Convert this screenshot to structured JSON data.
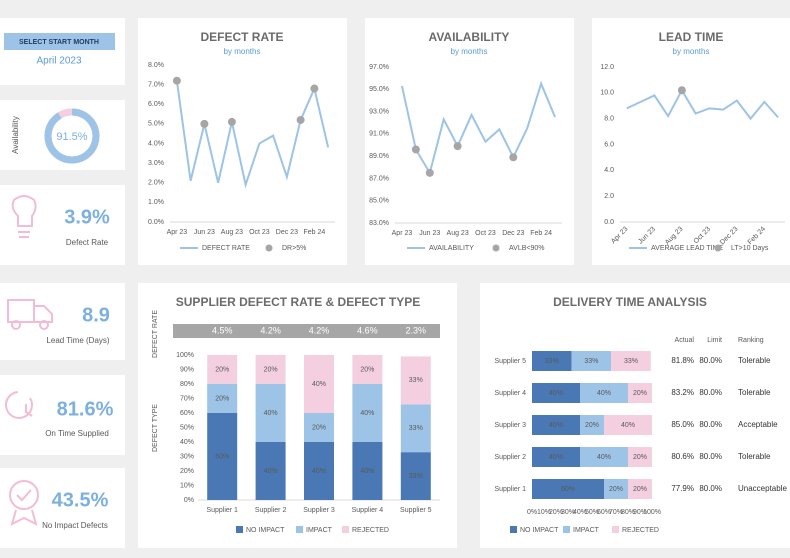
{
  "start_month": {
    "label": "SELECT START MONTH",
    "value": "April 2023"
  },
  "kpis": [
    {
      "label": "Availability",
      "value": 91.5,
      "value_label": "91.5%"
    },
    {
      "label": "Defect Rate",
      "value": "3.9%"
    },
    {
      "label": "Lead Time (Days)",
      "value": "8.9"
    },
    {
      "label": "On Time Supplied",
      "value": "81.6%"
    },
    {
      "label": "No Impact Defects",
      "value": "43.5%"
    }
  ],
  "chart_data": [
    {
      "type": "line",
      "title": "DEFECT RATE",
      "subtitle": "by months",
      "categories": [
        "Apr 23",
        null,
        "Jun 23",
        null,
        "Aug 23",
        null,
        "Oct 23",
        null,
        "Dec 23",
        null,
        "Feb 24",
        null
      ],
      "series": [
        {
          "name": "DEFECT RATE",
          "color": "#9dc3e6",
          "style": "line",
          "values": [
            7.2,
            2.1,
            5.0,
            2.0,
            5.1,
            1.9,
            4.0,
            4.4,
            2.3,
            5.2,
            6.8,
            3.8
          ]
        },
        {
          "name": "DR>5%",
          "color": "#a6a6a6",
          "style": "markers",
          "values": [
            7.2,
            null,
            5.0,
            null,
            5.1,
            null,
            null,
            null,
            null,
            5.2,
            6.8,
            null
          ]
        }
      ],
      "ylim": [
        0,
        8
      ],
      "yticks": [
        {
          "value": 0,
          "label": "0.0%"
        },
        {
          "value": 1,
          "label": "1.0%"
        },
        {
          "value": 2,
          "label": "2.0%"
        },
        {
          "value": 3,
          "label": "3.0%"
        },
        {
          "value": 4,
          "label": "4.0%"
        },
        {
          "value": 5,
          "label": "5.0%"
        },
        {
          "value": 6,
          "label": "6.0%"
        },
        {
          "value": 7,
          "label": "7.0%"
        },
        {
          "value": 8,
          "label": "8.0%"
        }
      ]
    },
    {
      "type": "line",
      "title": "AVAILABILITY",
      "subtitle": "by months",
      "categories": [
        "Apr 23",
        null,
        "Jun 23",
        null,
        "Aug 23",
        null,
        "Oct 23",
        null,
        "Dec 23",
        null,
        "Feb 24",
        null
      ],
      "series": [
        {
          "name": "AVAILABILITY",
          "color": "#9dc3e6",
          "style": "line",
          "values": [
            95.3,
            89.6,
            87.5,
            92.3,
            89.9,
            92.7,
            90.3,
            91.4,
            88.9,
            91.5,
            95.5,
            92.5
          ]
        },
        {
          "name": "AVLB<90%",
          "color": "#a6a6a6",
          "style": "markers",
          "values": [
            null,
            89.6,
            87.5,
            null,
            89.9,
            null,
            null,
            null,
            88.9,
            null,
            null,
            null
          ]
        }
      ],
      "ylim": [
        83,
        97
      ],
      "yticks": [
        {
          "value": 83,
          "label": "83.0%"
        },
        {
          "value": 85,
          "label": "85.0%"
        },
        {
          "value": 87,
          "label": "87.0%"
        },
        {
          "value": 89,
          "label": "89.0%"
        },
        {
          "value": 91,
          "label": "91.0%"
        },
        {
          "value": 93,
          "label": "93.0%"
        },
        {
          "value": 95,
          "label": "95.0%"
        },
        {
          "value": 97,
          "label": "97.0%"
        }
      ]
    },
    {
      "type": "line",
      "title": "LEAD TIME",
      "subtitle": "by months",
      "rotate_x_labels": true,
      "categories": [
        "Apr 23",
        null,
        "Jun 23",
        null,
        "Aug 23",
        null,
        "Oct 23",
        null,
        "Dec 23",
        null,
        "Feb 24",
        null
      ],
      "series": [
        {
          "name": "AVERAGE LEAD TIME",
          "color": "#9dc3e6",
          "style": "line",
          "values": [
            8.8,
            9.3,
            9.8,
            8.2,
            10.2,
            8.4,
            8.8,
            8.7,
            9.4,
            8.0,
            9.3,
            8.1
          ]
        },
        {
          "name": "LT>10 Days",
          "color": "#a6a6a6",
          "style": "markers",
          "values": [
            null,
            null,
            null,
            null,
            10.2,
            null,
            null,
            null,
            null,
            null,
            null,
            null
          ]
        }
      ],
      "ylim": [
        0,
        12
      ],
      "yticks": [
        {
          "value": 0,
          "label": "0.0"
        },
        {
          "value": 2,
          "label": "2.0"
        },
        {
          "value": 4,
          "label": "4.0"
        },
        {
          "value": 6,
          "label": "6.0"
        },
        {
          "value": 8,
          "label": "8.0"
        },
        {
          "value": 10,
          "label": "10.0"
        },
        {
          "value": 12,
          "label": "12.0"
        }
      ]
    },
    {
      "type": "bar",
      "orientation": "vertical",
      "stacked": true,
      "title": "SUPPLIER DEFECT RATE & DEFECT TYPE",
      "ylabel": "DEFECT TYPE",
      "defect_rate_label": "DEFECT RATE",
      "defect_rates": [
        4.5,
        4.2,
        4.2,
        4.6,
        2.3
      ],
      "defect_rate_labels": [
        "4.5%",
        "4.2%",
        "4.2%",
        "4.6%",
        "2.3%"
      ],
      "categories": [
        "Supplier 1",
        "Supplier 2",
        "Supplier 3",
        "Supplier 4",
        "Supplier 5"
      ],
      "series": [
        {
          "name": "NO IMPACT",
          "color": "#4a78b5",
          "values": [
            60,
            40,
            40,
            40,
            33
          ],
          "value_labels": [
            "60%",
            "40%",
            "40%",
            "40%",
            "33%"
          ]
        },
        {
          "name": "IMPACT",
          "color": "#9dc3e6",
          "values": [
            20,
            40,
            20,
            40,
            33
          ],
          "value_labels": [
            "20%",
            "40%",
            "20%",
            "40%",
            "33%"
          ]
        },
        {
          "name": "REJECTED",
          "color": "#f4cfe0",
          "values": [
            20,
            20,
            40,
            20,
            33
          ],
          "value_labels": [
            "20%",
            "20%",
            "40%",
            "20%",
            "33%"
          ]
        }
      ],
      "ylim": [
        0,
        100
      ],
      "yticks": [
        {
          "value": 0,
          "label": "0%"
        },
        {
          "value": 10,
          "label": "10%"
        },
        {
          "value": 20,
          "label": "20%"
        },
        {
          "value": 30,
          "label": "30%"
        },
        {
          "value": 40,
          "label": "40%"
        },
        {
          "value": 50,
          "label": "50%"
        },
        {
          "value": 60,
          "label": "60%"
        },
        {
          "value": 70,
          "label": "70%"
        },
        {
          "value": 80,
          "label": "80%"
        },
        {
          "value": 90,
          "label": "90%"
        },
        {
          "value": 100,
          "label": "100%"
        }
      ]
    },
    {
      "type": "bar",
      "orientation": "horizontal",
      "stacked": true,
      "title": "DELIVERY TIME ANALYSIS",
      "categories": [
        "Supplier 1",
        "Supplier 2",
        "Supplier 3",
        "Supplier 4",
        "Supplier 5"
      ],
      "series": [
        {
          "name": "NO IMPACT",
          "color": "#4a78b5",
          "values": [
            60,
            40,
            40,
            40,
            33
          ],
          "value_labels": [
            "60%",
            "40%",
            "40%",
            "40%",
            "33%"
          ]
        },
        {
          "name": "IMPACT",
          "color": "#9dc3e6",
          "values": [
            20,
            40,
            20,
            40,
            33
          ],
          "value_labels": [
            "20%",
            "40%",
            "20%",
            "40%",
            "33%"
          ]
        },
        {
          "name": "REJECTED",
          "color": "#f4cfe0",
          "values": [
            20,
            20,
            40,
            20,
            33
          ],
          "value_labels": [
            "20%",
            "20%",
            "40%",
            "20%",
            "33%"
          ]
        }
      ],
      "xlim": [
        0,
        100
      ],
      "xticks": [
        {
          "value": 0,
          "label": "0%"
        },
        {
          "value": 10,
          "label": "10%"
        },
        {
          "value": 20,
          "label": "20%"
        },
        {
          "value": 30,
          "label": "30%"
        },
        {
          "value": 40,
          "label": "40%"
        },
        {
          "value": 50,
          "label": "50%"
        },
        {
          "value": 60,
          "label": "60%"
        },
        {
          "value": 70,
          "label": "70%"
        },
        {
          "value": 80,
          "label": "80%"
        },
        {
          "value": 90,
          "label": "90%"
        },
        {
          "value": 100,
          "label": "100%"
        }
      ],
      "table": {
        "columns": [
          "Actual",
          "Limit",
          "Ranking"
        ],
        "rows": [
          [
            "77.9%",
            "80.0%",
            "Unacceptable"
          ],
          [
            "80.6%",
            "80.0%",
            "Tolerable"
          ],
          [
            "85.0%",
            "80.0%",
            "Acceptable"
          ],
          [
            "83.2%",
            "80.0%",
            "Tolerable"
          ],
          [
            "81.8%",
            "80.0%",
            "Tolerable"
          ]
        ]
      }
    }
  ]
}
